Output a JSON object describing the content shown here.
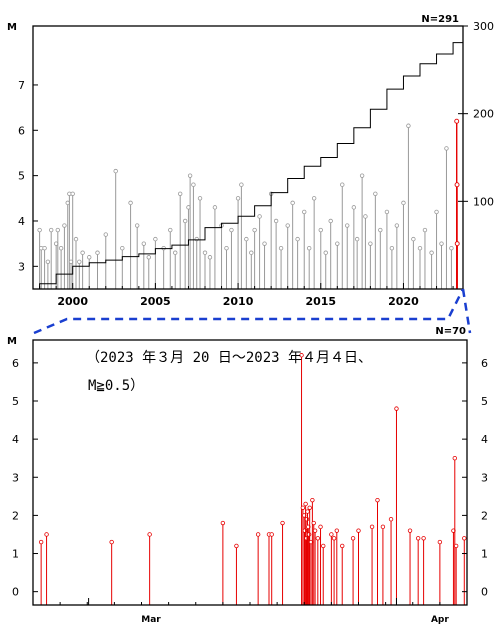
{
  "chart_data": [
    {
      "type": "stem",
      "title": "",
      "count_label": "N=291",
      "ylabel_left": "M",
      "ylim_left": [
        2.5,
        8.3
      ],
      "yticks_left": [
        "3",
        "4",
        "5",
        "6",
        "7"
      ],
      "ylim_right": [
        0,
        300
      ],
      "yticks_right": [
        "100",
        "200",
        "300"
      ],
      "xlim": [
        1997.6,
        2023.6
      ],
      "xticks": [
        "2000",
        "2005",
        "2010",
        "2015",
        "2020"
      ],
      "stem_color_past": "#999999",
      "stem_color_recent": "#e60000",
      "cumulative_line_color": "#000000",
      "highlight_points": [
        {
          "x": 2023.22,
          "m": 6.2
        },
        {
          "x": 2023.24,
          "m": 4.8
        },
        {
          "x": 2023.25,
          "m": 3.5
        }
      ],
      "cumulative_count": [
        {
          "x": 1997.6,
          "n": 0
        },
        {
          "x": 1998.0,
          "n": 6
        },
        {
          "x": 1999.0,
          "n": 17
        },
        {
          "x": 2000.0,
          "n": 26
        },
        {
          "x": 2001.0,
          "n": 30
        },
        {
          "x": 2002.0,
          "n": 33
        },
        {
          "x": 2003.0,
          "n": 37
        },
        {
          "x": 2004.0,
          "n": 40
        },
        {
          "x": 2005.0,
          "n": 46
        },
        {
          "x": 2006.0,
          "n": 50
        },
        {
          "x": 2007.0,
          "n": 56
        },
        {
          "x": 2008.0,
          "n": 70
        },
        {
          "x": 2009.0,
          "n": 75
        },
        {
          "x": 2010.0,
          "n": 83
        },
        {
          "x": 2011.0,
          "n": 95
        },
        {
          "x": 2012.0,
          "n": 110
        },
        {
          "x": 2013.0,
          "n": 126
        },
        {
          "x": 2014.0,
          "n": 140
        },
        {
          "x": 2015.0,
          "n": 150
        },
        {
          "x": 2016.0,
          "n": 166
        },
        {
          "x": 2017.0,
          "n": 184
        },
        {
          "x": 2018.0,
          "n": 205
        },
        {
          "x": 2019.0,
          "n": 228
        },
        {
          "x": 2020.0,
          "n": 243
        },
        {
          "x": 2021.0,
          "n": 257
        },
        {
          "x": 2022.0,
          "n": 268
        },
        {
          "x": 2023.0,
          "n": 281
        },
        {
          "x": 2023.6,
          "n": 291
        }
      ],
      "events": [
        {
          "x": 1998.0,
          "m": 3.8
        },
        {
          "x": 1998.1,
          "m": 3.4
        },
        {
          "x": 1998.3,
          "m": 3.4
        },
        {
          "x": 1998.5,
          "m": 3.1
        },
        {
          "x": 1998.7,
          "m": 3.8
        },
        {
          "x": 1999.0,
          "m": 3.5
        },
        {
          "x": 1999.1,
          "m": 3.8
        },
        {
          "x": 1999.3,
          "m": 3.4
        },
        {
          "x": 1999.5,
          "m": 3.9
        },
        {
          "x": 1999.7,
          "m": 4.4
        },
        {
          "x": 1999.8,
          "m": 4.6
        },
        {
          "x": 1999.9,
          "m": 3.1
        },
        {
          "x": 2000.0,
          "m": 4.6
        },
        {
          "x": 2000.2,
          "m": 3.6
        },
        {
          "x": 2000.4,
          "m": 3.1
        },
        {
          "x": 2000.6,
          "m": 3.3
        },
        {
          "x": 2001.0,
          "m": 3.2
        },
        {
          "x": 2001.5,
          "m": 3.3
        },
        {
          "x": 2002.0,
          "m": 3.7
        },
        {
          "x": 2002.6,
          "m": 5.1
        },
        {
          "x": 2003.0,
          "m": 3.4
        },
        {
          "x": 2003.5,
          "m": 4.4
        },
        {
          "x": 2003.9,
          "m": 3.9
        },
        {
          "x": 2004.3,
          "m": 3.5
        },
        {
          "x": 2004.6,
          "m": 3.2
        },
        {
          "x": 2005.0,
          "m": 3.6
        },
        {
          "x": 2005.5,
          "m": 3.4
        },
        {
          "x": 2005.9,
          "m": 3.8
        },
        {
          "x": 2006.2,
          "m": 3.3
        },
        {
          "x": 2006.5,
          "m": 4.6
        },
        {
          "x": 2006.8,
          "m": 4.0
        },
        {
          "x": 2007.0,
          "m": 4.3
        },
        {
          "x": 2007.1,
          "m": 5.0
        },
        {
          "x": 2007.3,
          "m": 4.8
        },
        {
          "x": 2007.5,
          "m": 3.6
        },
        {
          "x": 2007.7,
          "m": 4.5
        },
        {
          "x": 2008.0,
          "m": 3.3
        },
        {
          "x": 2008.3,
          "m": 3.2
        },
        {
          "x": 2008.6,
          "m": 4.3
        },
        {
          "x": 2009.0,
          "m": 3.9
        },
        {
          "x": 2009.3,
          "m": 3.4
        },
        {
          "x": 2009.6,
          "m": 3.8
        },
        {
          "x": 2010.0,
          "m": 4.5
        },
        {
          "x": 2010.2,
          "m": 4.8
        },
        {
          "x": 2010.5,
          "m": 3.6
        },
        {
          "x": 2010.8,
          "m": 3.3
        },
        {
          "x": 2011.0,
          "m": 3.8
        },
        {
          "x": 2011.3,
          "m": 4.1
        },
        {
          "x": 2011.6,
          "m": 3.5
        },
        {
          "x": 2012.0,
          "m": 4.6
        },
        {
          "x": 2012.3,
          "m": 4.0
        },
        {
          "x": 2012.6,
          "m": 3.4
        },
        {
          "x": 2013.0,
          "m": 3.9
        },
        {
          "x": 2013.3,
          "m": 4.4
        },
        {
          "x": 2013.6,
          "m": 3.6
        },
        {
          "x": 2014.0,
          "m": 4.2
        },
        {
          "x": 2014.3,
          "m": 3.4
        },
        {
          "x": 2014.6,
          "m": 4.5
        },
        {
          "x": 2015.0,
          "m": 3.8
        },
        {
          "x": 2015.3,
          "m": 3.3
        },
        {
          "x": 2015.6,
          "m": 4.0
        },
        {
          "x": 2016.0,
          "m": 3.5
        },
        {
          "x": 2016.3,
          "m": 4.8
        },
        {
          "x": 2016.6,
          "m": 3.9
        },
        {
          "x": 2017.0,
          "m": 4.3
        },
        {
          "x": 2017.2,
          "m": 3.6
        },
        {
          "x": 2017.5,
          "m": 5.0
        },
        {
          "x": 2017.7,
          "m": 4.1
        },
        {
          "x": 2018.0,
          "m": 3.5
        },
        {
          "x": 2018.3,
          "m": 4.6
        },
        {
          "x": 2018.6,
          "m": 3.8
        },
        {
          "x": 2019.0,
          "m": 4.2
        },
        {
          "x": 2019.3,
          "m": 3.4
        },
        {
          "x": 2019.6,
          "m": 3.9
        },
        {
          "x": 2020.0,
          "m": 4.4
        },
        {
          "x": 2020.3,
          "m": 6.1
        },
        {
          "x": 2020.6,
          "m": 3.6
        },
        {
          "x": 2021.0,
          "m": 3.4
        },
        {
          "x": 2021.3,
          "m": 3.8
        },
        {
          "x": 2021.7,
          "m": 3.3
        },
        {
          "x": 2022.0,
          "m": 4.2
        },
        {
          "x": 2022.3,
          "m": 3.5
        },
        {
          "x": 2022.6,
          "m": 5.6
        },
        {
          "x": 2022.9,
          "m": 3.4
        }
      ]
    },
    {
      "type": "stem",
      "title": "",
      "count_label": "N=70",
      "period_label_line1": "（2023 年３月 20 日～2023 年４月４日、",
      "period_label_line2": "M≧0.5）",
      "ylabel_left": "M",
      "ylim": [
        -0.35,
        6.6
      ],
      "yticks": [
        "0",
        "1",
        "2",
        "3",
        "4",
        "5",
        "6"
      ],
      "xlim": [
        0,
        16
      ],
      "xtick_labels": [
        "Mar",
        "Apr"
      ],
      "stem_color": "#e60000",
      "events": [
        {
          "x": 0.3,
          "m": 1.3
        },
        {
          "x": 0.5,
          "m": 1.5
        },
        {
          "x": 2.9,
          "m": 1.3
        },
        {
          "x": 4.3,
          "m": 1.5
        },
        {
          "x": 7.0,
          "m": 1.8
        },
        {
          "x": 7.5,
          "m": 1.2
        },
        {
          "x": 8.3,
          "m": 1.5
        },
        {
          "x": 8.7,
          "m": 1.5
        },
        {
          "x": 8.8,
          "m": 1.5
        },
        {
          "x": 9.2,
          "m": 1.8
        },
        {
          "x": 9.9,
          "m": 6.2
        },
        {
          "x": 9.95,
          "m": 2.2
        },
        {
          "x": 10.0,
          "m": 2.0
        },
        {
          "x": 10.02,
          "m": 1.6
        },
        {
          "x": 10.05,
          "m": 2.3
        },
        {
          "x": 10.08,
          "m": 1.4
        },
        {
          "x": 10.1,
          "m": 1.9
        },
        {
          "x": 10.12,
          "m": 2.1
        },
        {
          "x": 10.15,
          "m": 1.7
        },
        {
          "x": 10.18,
          "m": 1.5
        },
        {
          "x": 10.2,
          "m": 2.2
        },
        {
          "x": 10.25,
          "m": 1.3
        },
        {
          "x": 10.3,
          "m": 2.4
        },
        {
          "x": 10.35,
          "m": 1.8
        },
        {
          "x": 10.4,
          "m": 1.6
        },
        {
          "x": 10.5,
          "m": 1.4
        },
        {
          "x": 10.6,
          "m": 1.7
        },
        {
          "x": 10.7,
          "m": 1.2
        },
        {
          "x": 11.0,
          "m": 1.5
        },
        {
          "x": 11.1,
          "m": 1.4
        },
        {
          "x": 11.2,
          "m": 1.6
        },
        {
          "x": 11.4,
          "m": 1.2
        },
        {
          "x": 11.8,
          "m": 1.4
        },
        {
          "x": 12.0,
          "m": 1.6
        },
        {
          "x": 12.5,
          "m": 1.7
        },
        {
          "x": 12.7,
          "m": 2.4
        },
        {
          "x": 12.9,
          "m": 1.7
        },
        {
          "x": 13.2,
          "m": 1.9
        },
        {
          "x": 13.4,
          "m": 4.8
        },
        {
          "x": 13.9,
          "m": 1.6
        },
        {
          "x": 14.2,
          "m": 1.4
        },
        {
          "x": 14.4,
          "m": 1.4
        },
        {
          "x": 15.0,
          "m": 1.3
        },
        {
          "x": 15.5,
          "m": 1.6
        },
        {
          "x": 15.55,
          "m": 3.5
        },
        {
          "x": 15.6,
          "m": 1.2
        },
        {
          "x": 15.9,
          "m": 1.4
        }
      ]
    }
  ]
}
